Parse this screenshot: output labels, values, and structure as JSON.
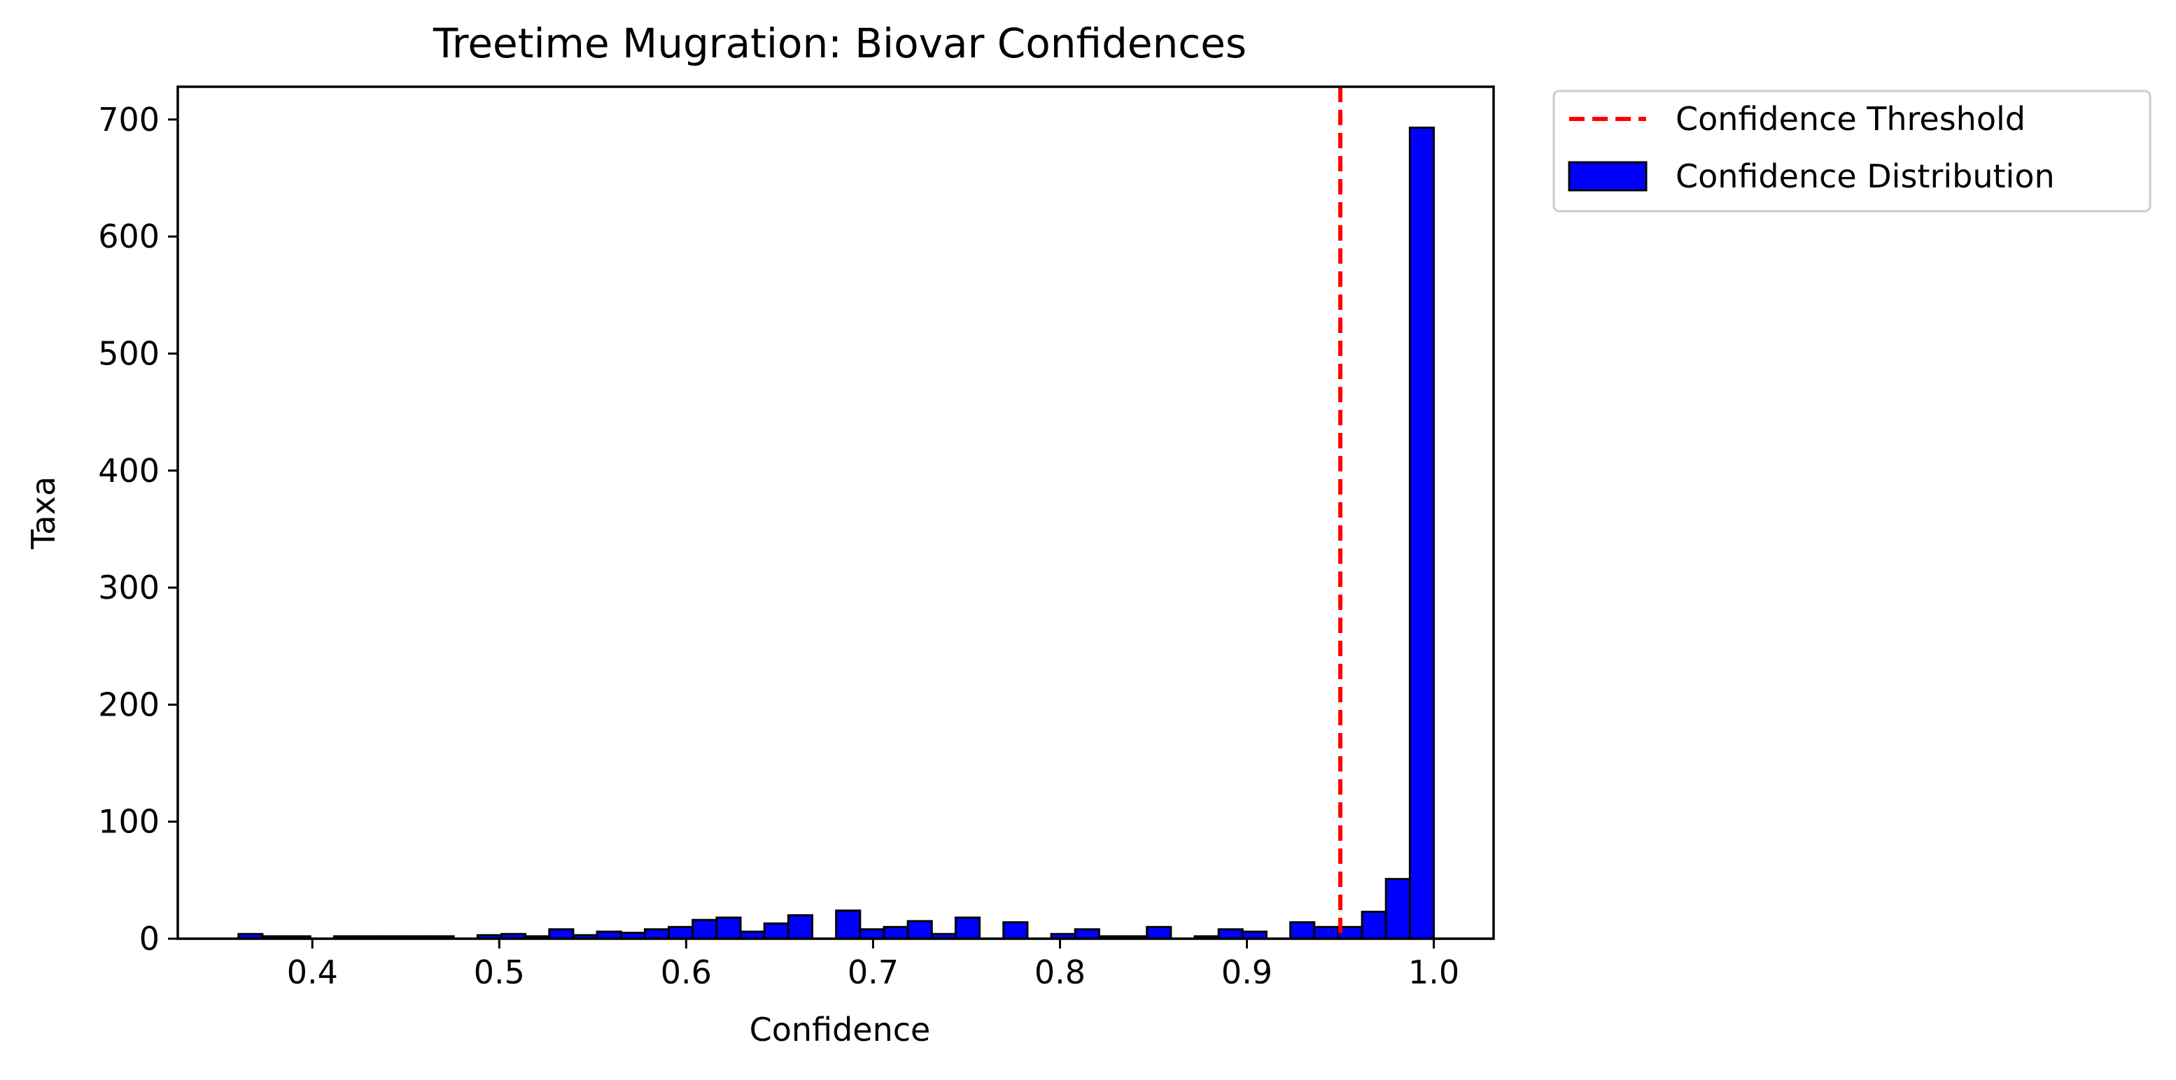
{
  "chart_data": {
    "type": "bar",
    "title": "Treetime Mugration: Biovar Confidences",
    "xlabel": "Confidence",
    "ylabel": "Taxa",
    "xlim": [
      0.328,
      1.032
    ],
    "ylim": [
      0,
      728
    ],
    "xticks": [
      0.4,
      0.5,
      0.6,
      0.7,
      0.8,
      0.9,
      1.0
    ],
    "xtick_labels": [
      "0.4",
      "0.5",
      "0.6",
      "0.7",
      "0.8",
      "0.9",
      "1.0"
    ],
    "yticks": [
      0,
      100,
      200,
      300,
      400,
      500,
      600,
      700
    ],
    "ytick_labels": [
      "0",
      "100",
      "200",
      "300",
      "400",
      "500",
      "600",
      "700"
    ],
    "grid": false,
    "legend_placement": "outside-upper-right",
    "threshold": {
      "name": "Confidence Threshold",
      "x": 0.95,
      "color": "#ff0000",
      "style": "dashed"
    },
    "series": [
      {
        "name": "Confidence Distribution",
        "color": "#0000ff",
        "edgecolor": "#000000",
        "bin_start": 0.3605,
        "bin_width": 0.01279,
        "values": [
          4,
          2,
          2,
          0,
          2,
          2,
          2,
          2,
          2,
          0,
          3,
          4,
          2,
          8,
          3,
          6,
          5,
          8,
          10,
          16,
          18,
          6,
          13,
          20,
          0,
          24,
          8,
          10,
          15,
          4,
          18,
          0,
          14,
          0,
          4,
          8,
          2,
          2,
          10,
          0,
          2,
          8,
          6,
          0,
          14,
          10,
          10,
          23,
          51,
          693
        ]
      }
    ]
  }
}
